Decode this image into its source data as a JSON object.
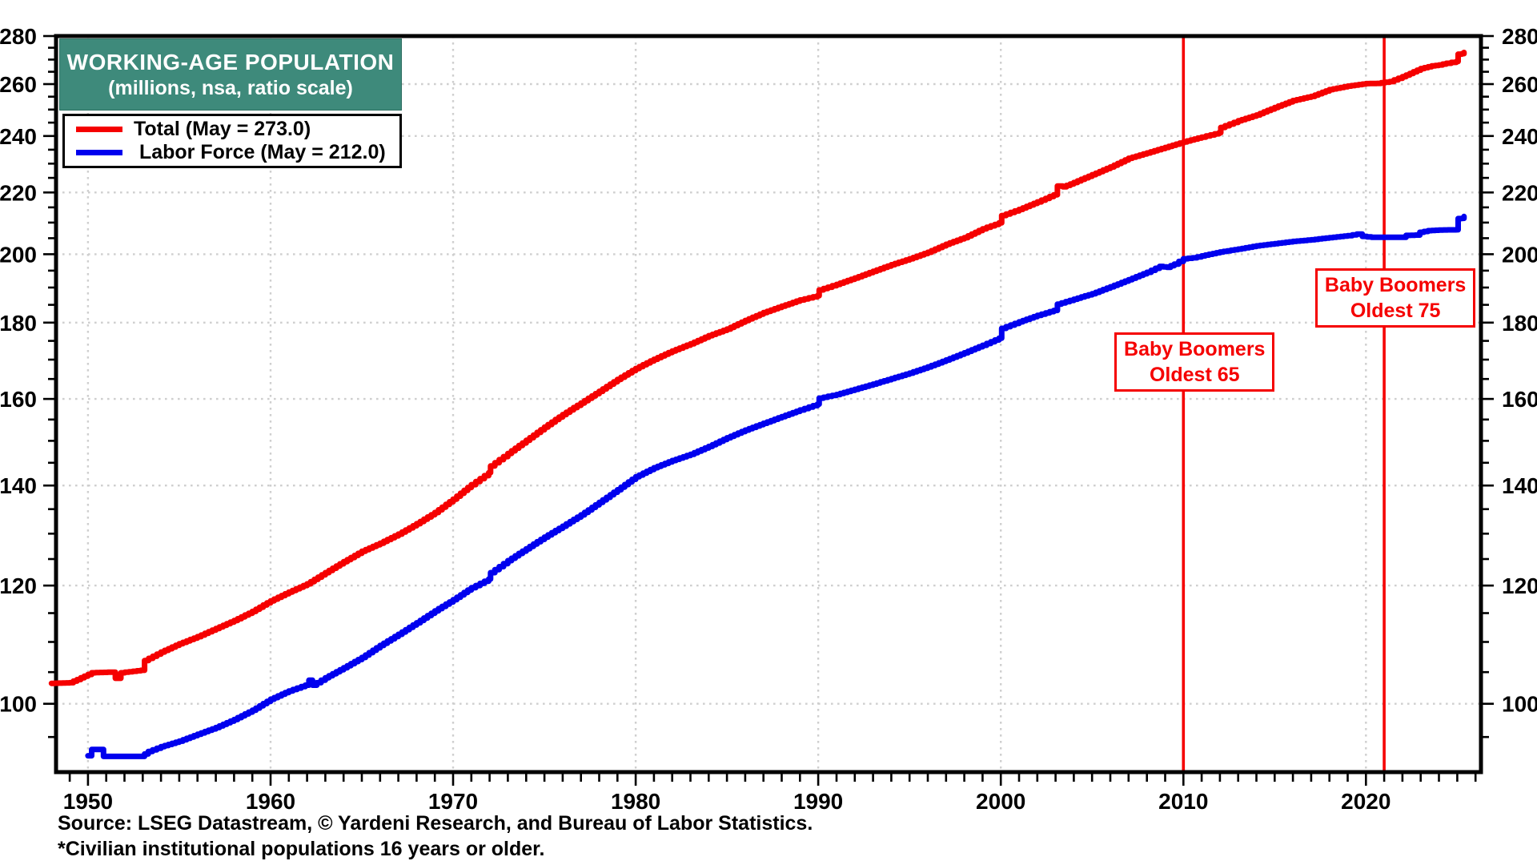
{
  "page": {
    "background": "#FFFFFF"
  },
  "title_box": {
    "line1": "WORKING-AGE POPULATION",
    "line2": "(millions, nsa, ratio scale)",
    "bg_color": "#3E8A7B",
    "text_color": "#FFFFFF"
  },
  "legend": {
    "items": [
      {
        "label": "Total (May = 273.0)",
        "color": "#F50000"
      },
      {
        "label": " Labor Force (May = 212.0)",
        "color": "#0000EE"
      }
    ]
  },
  "source": {
    "line1": "Source: LSEG Datastream, © Yardeni Research, and Bureau of Labor Statistics.",
    "line2": "*Civilian institutional populations 16 years or older."
  },
  "chart_data": {
    "type": "line",
    "title": "WORKING-AGE POPULATION",
    "subtitle": "(millions, nsa, ratio scale)",
    "y_scale": "log",
    "ylim": [
      90,
      280
    ],
    "xlim": [
      1948.25,
      2026.3
    ],
    "y_ticks": [
      100,
      120,
      140,
      160,
      180,
      200,
      220,
      240,
      260,
      280
    ],
    "y_minor_step": 5,
    "x_ticks": [
      1950,
      1960,
      1970,
      1980,
      1990,
      2000,
      2010,
      2020
    ],
    "x_minor_step": 1,
    "grid": true,
    "grid_color": "#CFCFCF",
    "frame_color": "#000000",
    "legend_position": "top-left",
    "event_lines": [
      {
        "year": 2010,
        "color": "#F50000",
        "label_line1": "Baby Boomers",
        "label_line2": "Oldest 65"
      },
      {
        "year": 2021,
        "color": "#F50000",
        "label_line1": "Baby Boomers",
        "label_line2": "Oldest 75"
      }
    ],
    "series": [
      {
        "name": "Total",
        "color": "#F50000",
        "last_label": "May = 273.0",
        "data": [
          [
            1948.0,
            103.2
          ],
          [
            1949.0,
            103.3
          ],
          [
            1949.4,
            103.8
          ],
          [
            1950.2,
            104.9
          ],
          [
            1951.3,
            105.0
          ],
          [
            1951.5,
            104.0
          ],
          [
            1951.8,
            104.9
          ],
          [
            1952.9,
            105.3
          ],
          [
            1953.1,
            106.9
          ],
          [
            1954,
            108.3
          ],
          [
            1955,
            109.7
          ],
          [
            1956,
            110.9
          ],
          [
            1957,
            112.3
          ],
          [
            1958,
            113.7
          ],
          [
            1959,
            115.3
          ],
          [
            1960,
            117.2
          ],
          [
            1961,
            118.8
          ],
          [
            1962,
            120.3
          ],
          [
            1963,
            122.4
          ],
          [
            1964,
            124.5
          ],
          [
            1965,
            126.5
          ],
          [
            1966,
            128.1
          ],
          [
            1967,
            129.9
          ],
          [
            1968,
            132.0
          ],
          [
            1969,
            134.3
          ],
          [
            1970,
            137.1
          ],
          [
            1971,
            140.2
          ],
          [
            1971.95,
            142.8
          ],
          [
            1972.05,
            144.3
          ],
          [
            1973,
            147.1
          ],
          [
            1974,
            150.1
          ],
          [
            1975,
            153.2
          ],
          [
            1976,
            156.2
          ],
          [
            1977,
            159.0
          ],
          [
            1978,
            161.9
          ],
          [
            1979,
            164.9
          ],
          [
            1980,
            167.7
          ],
          [
            1981,
            170.1
          ],
          [
            1982,
            172.3
          ],
          [
            1983,
            174.2
          ],
          [
            1984,
            176.4
          ],
          [
            1985,
            178.2
          ],
          [
            1986,
            180.6
          ],
          [
            1987,
            182.8
          ],
          [
            1988,
            184.6
          ],
          [
            1989,
            186.4
          ],
          [
            1989.95,
            187.6
          ],
          [
            1990.05,
            189.3
          ],
          [
            1991,
            190.9
          ],
          [
            1992,
            192.8
          ],
          [
            1993,
            194.8
          ],
          [
            1994,
            196.8
          ],
          [
            1995,
            198.6
          ],
          [
            1996,
            200.6
          ],
          [
            1997,
            203.1
          ],
          [
            1998,
            205.2
          ],
          [
            1999,
            208.0
          ],
          [
            1999.9,
            209.9
          ],
          [
            2000.05,
            212.3
          ],
          [
            2001,
            214.3
          ],
          [
            2002,
            216.8
          ],
          [
            2002.9,
            219.2
          ],
          [
            2003.1,
            222.2
          ],
          [
            2003.4,
            221.9
          ],
          [
            2004,
            223.4
          ],
          [
            2005,
            226.1
          ],
          [
            2006,
            228.8
          ],
          [
            2007,
            231.9
          ],
          [
            2008,
            233.8
          ],
          [
            2009,
            235.8
          ],
          [
            2010,
            237.8
          ],
          [
            2011,
            239.6
          ],
          [
            2011.95,
            241.2
          ],
          [
            2012.05,
            243.2
          ],
          [
            2013,
            245.7
          ],
          [
            2014,
            247.9
          ],
          [
            2015,
            250.8
          ],
          [
            2016,
            253.5
          ],
          [
            2017,
            255.1
          ],
          [
            2018,
            257.8
          ],
          [
            2019,
            259.2
          ],
          [
            2020,
            260.2
          ],
          [
            2020.6,
            260.3
          ],
          [
            2021.3,
            261.0
          ],
          [
            2022,
            263.0
          ],
          [
            2023,
            266.3
          ],
          [
            2023.6,
            267.4
          ],
          [
            2024,
            267.8
          ],
          [
            2024.4,
            268.5
          ],
          [
            2024.95,
            269.2
          ],
          [
            2025.05,
            272.3
          ],
          [
            2025.25,
            272.5
          ],
          [
            2025.37,
            273.0
          ]
        ]
      },
      {
        "name": "Labor Force",
        "color": "#0000EE",
        "last_label": "May = 212.0",
        "data": [
          [
            1950.0,
            92.3
          ],
          [
            1950.2,
            93.2
          ],
          [
            1950.7,
            93.2
          ],
          [
            1950.85,
            92.2
          ],
          [
            1952.9,
            92.2
          ],
          [
            1953.3,
            92.9
          ],
          [
            1954,
            93.6
          ],
          [
            1955,
            94.4
          ],
          [
            1956,
            95.4
          ],
          [
            1957,
            96.4
          ],
          [
            1958,
            97.6
          ],
          [
            1959,
            99.0
          ],
          [
            1960,
            100.7
          ],
          [
            1961,
            102.0
          ],
          [
            1961.9,
            102.9
          ],
          [
            1962.1,
            103.7
          ],
          [
            1962.3,
            102.9
          ],
          [
            1963,
            104.1
          ],
          [
            1964,
            105.7
          ],
          [
            1965,
            107.4
          ],
          [
            1966,
            109.4
          ],
          [
            1967,
            111.3
          ],
          [
            1968,
            113.3
          ],
          [
            1969,
            115.4
          ],
          [
            1970,
            117.4
          ],
          [
            1971,
            119.6
          ],
          [
            1971.95,
            121.2
          ],
          [
            1972.05,
            122.4
          ],
          [
            1973,
            124.7
          ],
          [
            1974,
            127.0
          ],
          [
            1975,
            129.3
          ],
          [
            1976,
            131.5
          ],
          [
            1977,
            133.8
          ],
          [
            1978,
            136.4
          ],
          [
            1979,
            139.1
          ],
          [
            1980,
            141.9
          ],
          [
            1981,
            143.9
          ],
          [
            1982,
            145.5
          ],
          [
            1983,
            146.9
          ],
          [
            1984,
            148.7
          ],
          [
            1985,
            150.7
          ],
          [
            1986,
            152.5
          ],
          [
            1987,
            154.1
          ],
          [
            1988,
            155.7
          ],
          [
            1989,
            157.3
          ],
          [
            1989.95,
            158.7
          ],
          [
            1990.05,
            160.2
          ],
          [
            1991,
            161.1
          ],
          [
            1992,
            162.4
          ],
          [
            1993,
            163.7
          ],
          [
            1994,
            165.1
          ],
          [
            1995,
            166.5
          ],
          [
            1996,
            168.1
          ],
          [
            1997,
            169.9
          ],
          [
            1998,
            171.8
          ],
          [
            1999,
            173.8
          ],
          [
            1999.9,
            175.7
          ],
          [
            2000.05,
            178.4
          ],
          [
            2001,
            180.2
          ],
          [
            2002,
            182.0
          ],
          [
            2002.9,
            183.4
          ],
          [
            2003.1,
            185.2
          ],
          [
            2004,
            186.6
          ],
          [
            2005,
            188.2
          ],
          [
            2006,
            190.2
          ],
          [
            2007,
            192.3
          ],
          [
            2008,
            194.5
          ],
          [
            2008.7,
            196.3
          ],
          [
            2009.1,
            196.0
          ],
          [
            2009.5,
            197.0
          ],
          [
            2010,
            198.6
          ],
          [
            2010.5,
            198.9
          ],
          [
            2011,
            199.5
          ],
          [
            2012,
            200.7
          ],
          [
            2013,
            201.6
          ],
          [
            2014,
            202.6
          ],
          [
            2015,
            203.3
          ],
          [
            2016,
            204.0
          ],
          [
            2016.6,
            204.3
          ],
          [
            2017,
            204.5
          ],
          [
            2018,
            205.2
          ],
          [
            2019,
            205.8
          ],
          [
            2019.5,
            206.3
          ],
          [
            2019.8,
            205.6
          ],
          [
            2020.3,
            205.3
          ],
          [
            2021.9,
            205.3
          ],
          [
            2022.2,
            205.9
          ],
          [
            2022.7,
            206.0
          ],
          [
            2022.95,
            206.9
          ],
          [
            2023.4,
            207.4
          ],
          [
            2024,
            207.6
          ],
          [
            2024.95,
            207.7
          ],
          [
            2025.05,
            211.3
          ],
          [
            2025.25,
            211.4
          ],
          [
            2025.37,
            212.0
          ]
        ]
      }
    ]
  }
}
